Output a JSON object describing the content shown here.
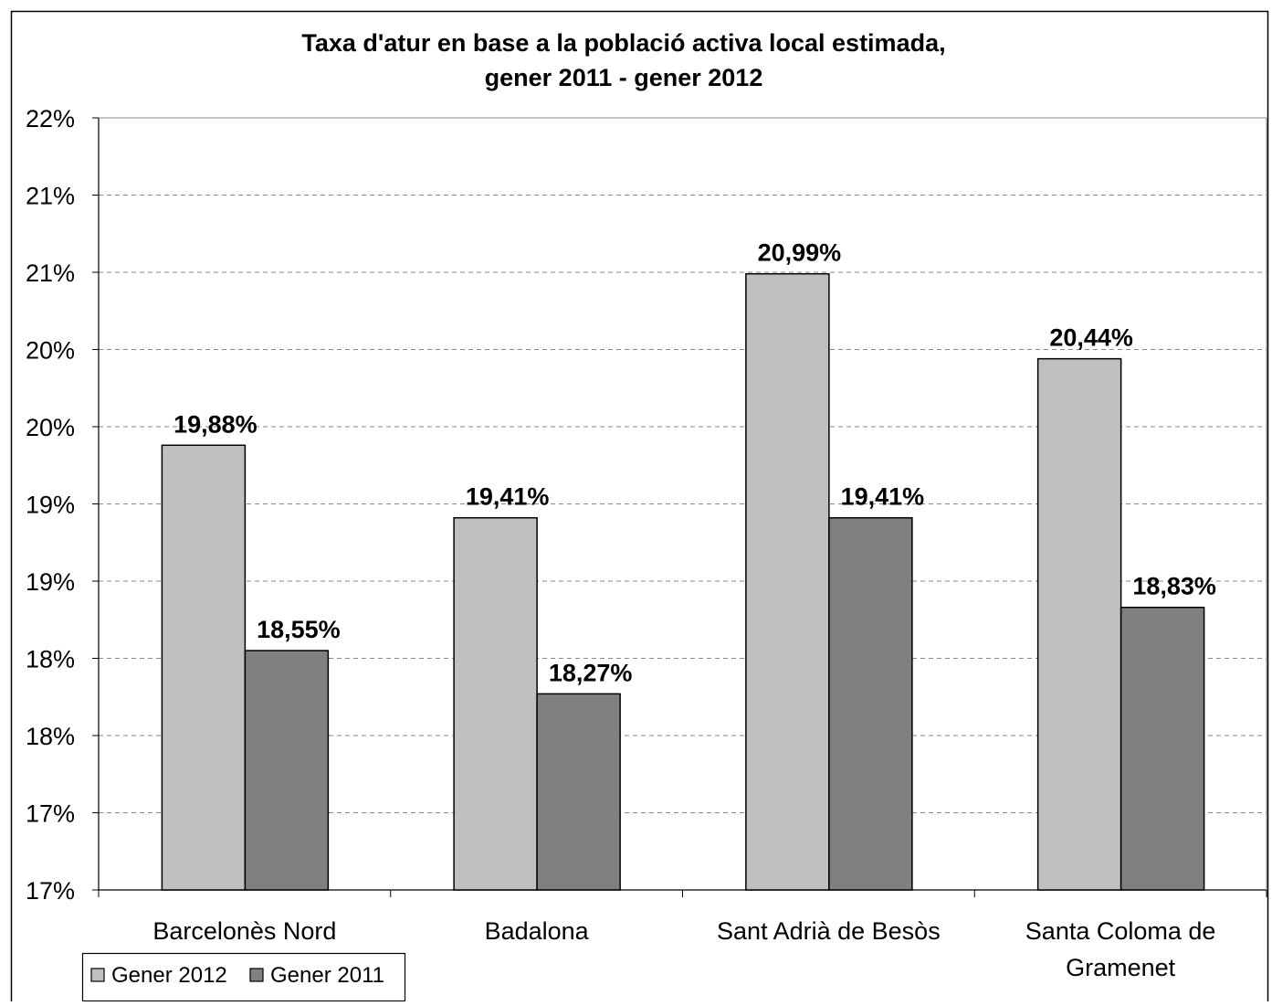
{
  "chart_data": {
    "type": "bar",
    "title": [
      "Taxa d'atur en base a la població activa local estimada,",
      "gener 2011 - gener 2012"
    ],
    "categories": [
      [
        "Barcelonès Nord"
      ],
      [
        "Badalona"
      ],
      [
        "Sant Adrià de Besòs"
      ],
      [
        "Santa Coloma de",
        "Gramenet"
      ]
    ],
    "series": [
      {
        "name": "Gener 2012",
        "color": "#c0c0c0",
        "values": [
          19.88,
          19.41,
          20.99,
          20.44
        ],
        "labels": [
          "19,88%",
          "19,41%",
          "20,99%",
          "20,44%"
        ]
      },
      {
        "name": "Gener 2011",
        "color": "#808080",
        "values": [
          18.55,
          18.27,
          19.41,
          18.83
        ],
        "labels": [
          "18,55%",
          "18,27%",
          "19,41%",
          "18,83%"
        ]
      }
    ],
    "ylim": [
      17,
      22
    ],
    "y_tick_values": [
      17,
      17.5,
      18,
      18.5,
      19,
      19.5,
      20,
      20.5,
      21,
      21.5,
      22
    ],
    "y_tick_labels": [
      "17%",
      "17%",
      "18%",
      "18%",
      "19%",
      "19%",
      "20%",
      "20%",
      "21%",
      "21%",
      "22%"
    ],
    "grid": true,
    "legend_position": "bottom-left"
  }
}
